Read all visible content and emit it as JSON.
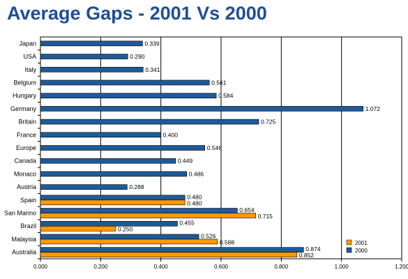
{
  "chart_data": {
    "type": "bar",
    "orientation": "horizontal",
    "title": "Average Gaps - 2001 Vs 2000",
    "categories": [
      "Japan",
      "USA",
      "Italy",
      "Belgium",
      "Hungary",
      "Germany",
      "Britain",
      "France",
      "Europe",
      "Canada",
      "Monaco",
      "Austria",
      "Spain",
      "San Marino",
      "Brazil",
      "Malaysia",
      "Australia"
    ],
    "series": [
      {
        "name": "2000",
        "color": "#1f5a99",
        "values": [
          0.339,
          0.29,
          0.341,
          0.561,
          0.584,
          1.072,
          0.725,
          0.4,
          0.546,
          0.449,
          0.486,
          0.288,
          0.48,
          0.654,
          0.455,
          0.526,
          0.874
        ]
      },
      {
        "name": "2001",
        "color": "#ff9900",
        "values": [
          null,
          null,
          null,
          null,
          null,
          null,
          null,
          null,
          null,
          null,
          null,
          null,
          0.48,
          0.715,
          0.25,
          0.588,
          0.852
        ]
      }
    ],
    "data_labels": {
      "2000": [
        "0.339",
        "0.290",
        "0.341",
        "0.561",
        "0.584",
        "1.072",
        "0.725",
        "0.400",
        "0.546",
        "0.449",
        "0.486",
        "0.288",
        "0.480",
        "0.654",
        "0.455",
        "0.526",
        "0.874"
      ],
      "2001": [
        "",
        "",
        "",
        "",
        "",
        "",
        "",
        "",
        "",
        "",
        "",
        "",
        "0.480",
        "0.715",
        "0.250",
        "0.588",
        "0.852"
      ]
    },
    "x_ticks": [
      "0.000",
      "0.200",
      "0.400",
      "0.600",
      "0.800",
      "1.000",
      "1.200"
    ],
    "xlim": [
      0,
      1.2
    ],
    "grid": "vertical",
    "legend_position": "bottom-right",
    "legend_order": [
      "2001",
      "2000"
    ]
  }
}
